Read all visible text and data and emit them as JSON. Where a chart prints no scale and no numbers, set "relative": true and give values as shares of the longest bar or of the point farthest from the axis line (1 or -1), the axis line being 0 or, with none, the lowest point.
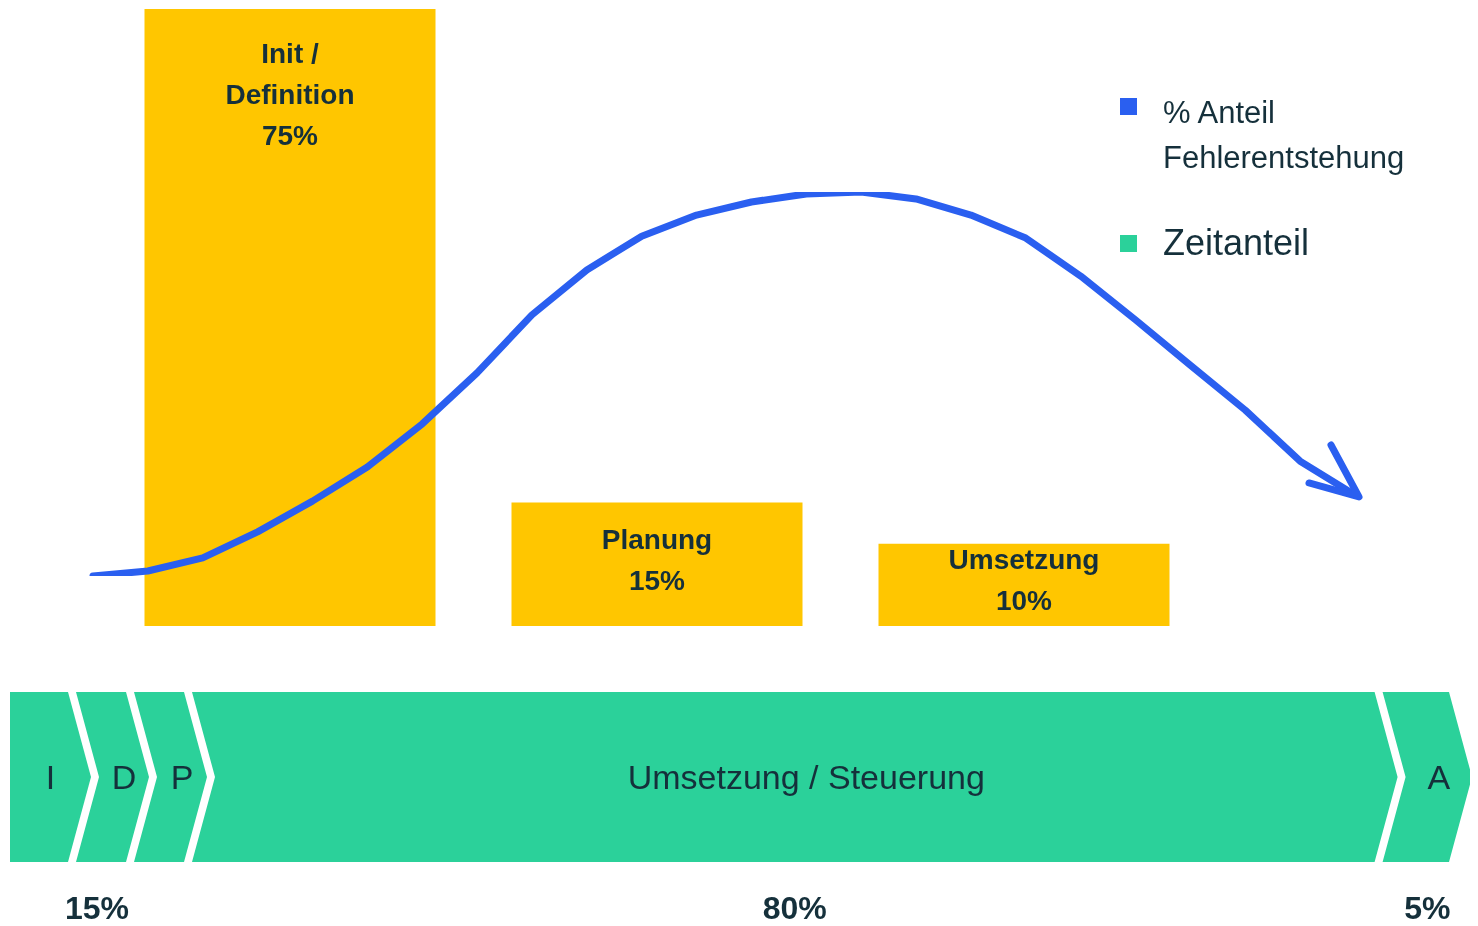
{
  "chart_data": [
    {
      "type": "bar",
      "categories": [
        "Init / Definition",
        "Planung",
        "Umsetzung"
      ],
      "tick_labels": false,
      "series": [
        {
          "color": "#ffc600",
          "values": [
            75,
            15,
            10
          ],
          "value_labels": [
            "75%",
            "15%",
            "10%"
          ]
        }
      ]
    },
    {
      "type": "line",
      "relative": true,
      "categories": [
        null,
        null,
        null,
        null,
        null,
        null,
        null,
        null,
        null,
        null,
        null,
        null,
        null,
        null,
        null,
        null,
        null,
        null,
        null,
        null,
        null,
        null,
        null,
        null
      ],
      "legend": "top right",
      "line_style": "solid",
      "series": [
        {
          "name": "% Anteil Fehlerentstehung",
          "color": "#2a5ff0",
          "values": [
            0,
            0.013,
            0.047,
            0.115,
            0.195,
            0.284,
            0.396,
            0.529,
            0.68,
            0.797,
            0.885,
            0.94,
            0.974,
            0.995,
            1,
            0.982,
            0.94,
            0.88,
            0.781,
            0.667,
            0.549,
            0.432,
            0.299,
            0.211
          ]
        }
      ]
    },
    {
      "type": "other",
      "categories": [
        "I",
        "D",
        "P",
        "Umsetzung / Steuerung",
        "A"
      ],
      "legend": "top right",
      "series": [
        {
          "name": "Zeitanteil",
          "color": "#2bd19a",
          "values": [
            null,
            null,
            null,
            80,
            5
          ],
          "value_labels": [
            null,
            null,
            null,
            "80%",
            "5%"
          ]
        }
      ],
      "annotations": [
        "15%"
      ]
    }
  ]
}
